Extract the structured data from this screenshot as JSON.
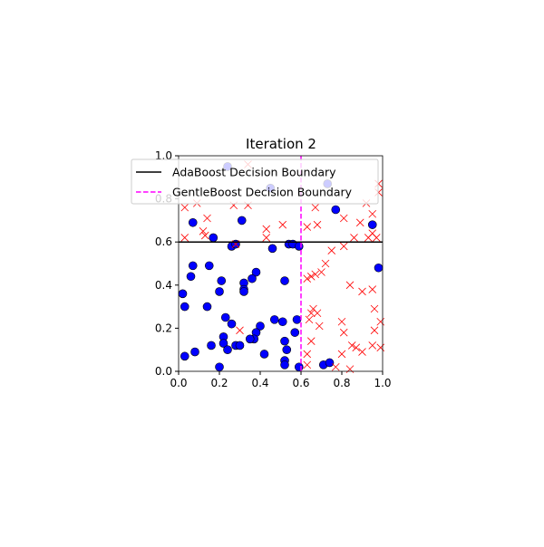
{
  "chart_data": {
    "type": "scatter",
    "title": "Iteration 2",
    "xlim": [
      0,
      1
    ],
    "ylim": [
      0,
      1
    ],
    "xticks": [
      {
        "value": 0,
        "label": "0.0"
      },
      0.2,
      0.4,
      0.6,
      0.8,
      {
        "value": 1,
        "label": "1.0"
      }
    ],
    "yticks": [
      {
        "value": 0,
        "label": "0.0"
      },
      0.2,
      0.4,
      0.6,
      0.8,
      {
        "value": 1,
        "label": "1.0"
      }
    ],
    "series": [
      {
        "marker": "o",
        "color": "#0000ff",
        "x": [
          0.07,
          0.31,
          0.17,
          0.26,
          0.28,
          0.98,
          0.95,
          0.77,
          0.73,
          0.24,
          0.45,
          0.07,
          0.15,
          0.06,
          0.21,
          0.2,
          0.38,
          0.36,
          0.32,
          0.32,
          0.32,
          0.02,
          0.03,
          0.14,
          0.46,
          0.54,
          0.56,
          0.59,
          0.52,
          0.23,
          0.26,
          0.47,
          0.51,
          0.58,
          0.57,
          0.4,
          0.38,
          0.37,
          0.35,
          0.22,
          0.22,
          0.24,
          0.16,
          0.28,
          0.3,
          0.42,
          0.52,
          0.53,
          0.52,
          0.52,
          0.59,
          0.2,
          0.08,
          0.03,
          0.71,
          0.74
        ],
        "y": [
          0.69,
          0.7,
          0.62,
          0.58,
          0.59,
          0.48,
          0.68,
          0.75,
          0.87,
          0.95,
          0.85,
          0.49,
          0.49,
          0.44,
          0.42,
          0.37,
          0.46,
          0.43,
          0.41,
          0.38,
          0.37,
          0.36,
          0.3,
          0.3,
          0.57,
          0.59,
          0.59,
          0.58,
          0.42,
          0.25,
          0.22,
          0.24,
          0.23,
          0.24,
          0.18,
          0.21,
          0.18,
          0.15,
          0.15,
          0.16,
          0.13,
          0.1,
          0.12,
          0.12,
          0.12,
          0.08,
          0.14,
          0.1,
          0.05,
          0.03,
          0.02,
          0.02,
          0.09,
          0.07,
          0.03,
          0.04
        ]
      },
      {
        "marker": "x",
        "color": "#ff0000",
        "x": [
          0.03,
          0.09,
          0.14,
          0.03,
          0.12,
          0.27,
          0.34,
          0.34,
          0.43,
          0.43,
          0.51,
          0.63,
          0.67,
          0.68,
          0.81,
          0.89,
          0.95,
          0.98,
          0.98,
          0.92,
          0.93,
          0.95,
          0.86,
          0.97,
          0.81,
          0.75,
          0.72,
          0.7,
          0.67,
          0.65,
          0.63,
          0.84,
          0.9,
          0.95,
          0.96,
          0.99,
          0.96,
          0.66,
          0.68,
          0.65,
          0.64,
          0.69,
          0.65,
          0.8,
          0.81,
          0.85,
          0.87,
          0.9,
          0.95,
          0.99,
          0.63,
          0.8,
          0.84,
          0.77,
          0.63,
          0.3,
          0.13,
          0.28
        ],
        "y": [
          0.76,
          0.78,
          0.71,
          0.62,
          0.65,
          0.77,
          0.77,
          0.96,
          0.66,
          0.62,
          0.68,
          0.67,
          0.76,
          0.68,
          0.71,
          0.69,
          0.73,
          0.87,
          0.83,
          0.78,
          0.62,
          0.64,
          0.62,
          0.62,
          0.58,
          0.56,
          0.5,
          0.46,
          0.45,
          0.44,
          0.43,
          0.4,
          0.37,
          0.38,
          0.29,
          0.23,
          0.19,
          0.29,
          0.27,
          0.27,
          0.24,
          0.21,
          0.14,
          0.23,
          0.18,
          0.12,
          0.11,
          0.09,
          0.12,
          0.11,
          0.08,
          0.08,
          0.01,
          0.02,
          0.03,
          0.19,
          0.63,
          0.59
        ]
      }
    ],
    "boundaries": [
      {
        "name": "AdaBoost Decision Boundary",
        "color": "#000000",
        "orientation": "horizontal",
        "dashed": false,
        "value": 0.6
      },
      {
        "name": "GentleBoost Decision Boundary",
        "color": "#ff00ff",
        "orientation": "vertical",
        "dashed": true,
        "value": 0.6
      }
    ]
  }
}
